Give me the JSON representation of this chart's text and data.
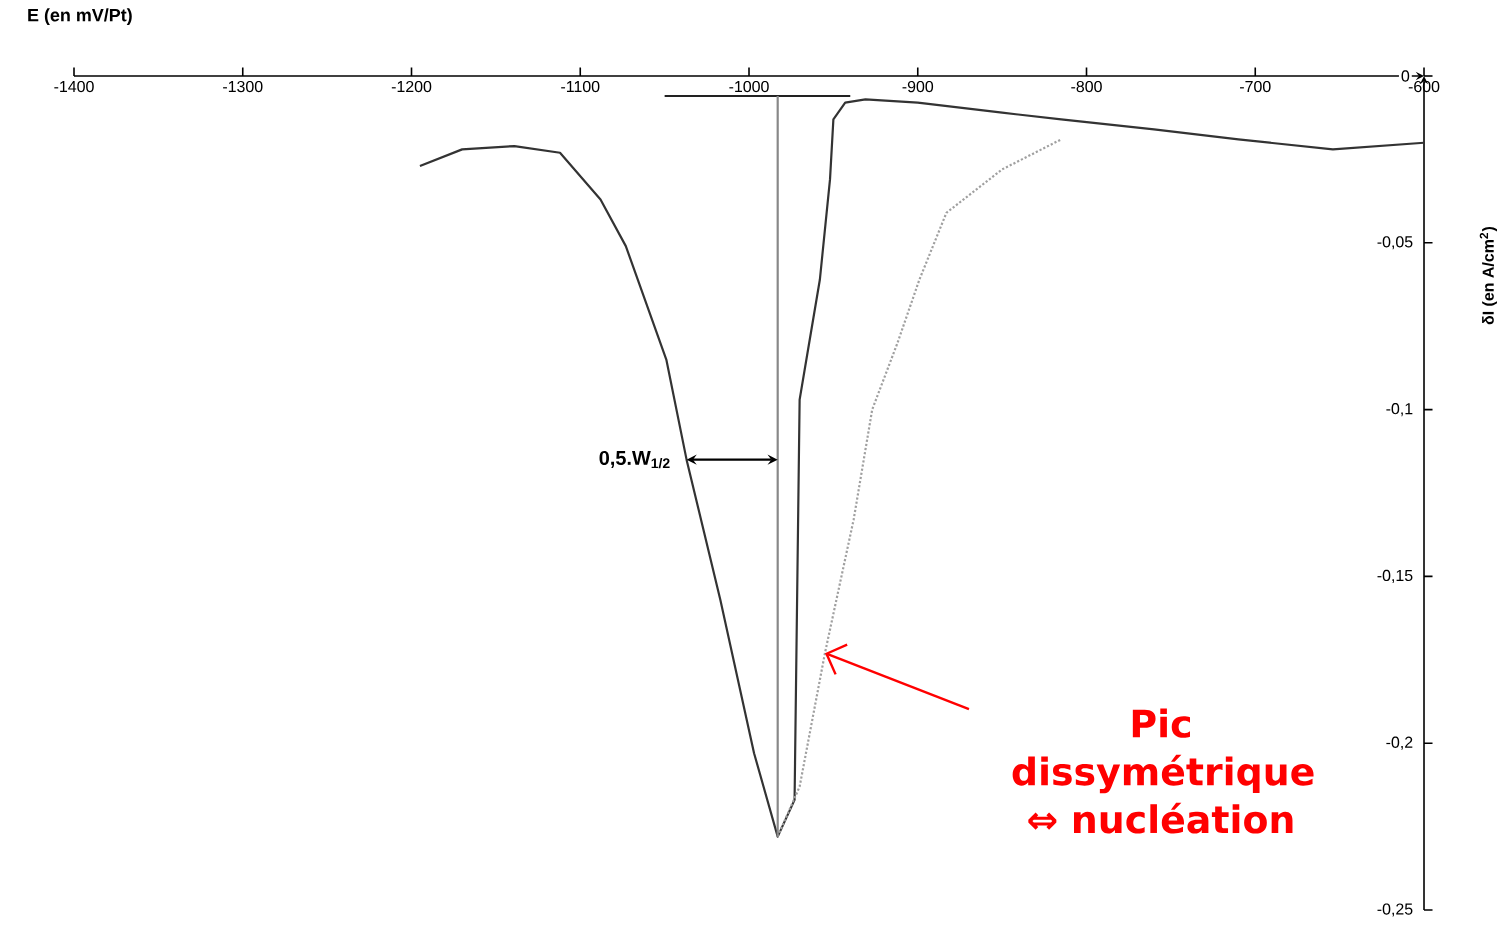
{
  "chart_data": {
    "type": "line",
    "xlabel": "E (en mV/Pt)",
    "ylabel": "δI (en A/cm$^{2}$)",
    "xlim": [
      -1400,
      -600
    ],
    "ylim": [
      -0.25,
      0
    ],
    "xticks": [
      -1400,
      -1300,
      -1200,
      -1100,
      -1000,
      -900,
      -800,
      -700,
      -600
    ],
    "yticks": [
      {
        "value": -0.25,
        "label": "-0,25"
      },
      {
        "value": -0.2,
        "label": "-0,2"
      },
      {
        "value": -0.15,
        "label": "-0,15"
      },
      {
        "value": -0.1,
        "label": "-0,1"
      },
      {
        "value": -0.05,
        "label": "-0,05"
      },
      0
    ],
    "grid": false,
    "marker": "none",
    "series": [
      {
        "color": "#333333",
        "line_style": "solid",
        "x": [
          -1195,
          -1170,
          -1139,
          -1112,
          -1088,
          -1073,
          -1049,
          -1037,
          -1017,
          -997,
          -983,
          -973,
          -970,
          -966,
          -958,
          -952,
          -950,
          -943,
          -931,
          -900,
          -850,
          -815,
          -760,
          -710,
          -654,
          -600
        ],
        "values": [
          -0.027,
          -0.022,
          -0.021,
          -0.023,
          -0.037,
          -0.051,
          -0.085,
          -0.115,
          -0.157,
          -0.203,
          -0.228,
          -0.217,
          -0.097,
          -0.085,
          -0.061,
          -0.031,
          -0.013,
          -0.008,
          -0.007,
          -0.008,
          -0.011,
          -0.013,
          -0.016,
          -0.019,
          -0.022,
          -0.02
        ]
      },
      {
        "color": "#a0a0a0",
        "line_style": "dotted",
        "x": [
          -983,
          -970,
          -955,
          -938,
          -927,
          -912,
          -899,
          -883,
          -850,
          -815
        ],
        "values": [
          -0.228,
          -0.213,
          -0.173,
          -0.133,
          -0.1,
          -0.08,
          -0.061,
          -0.041,
          -0.028,
          -0.019
        ]
      },
      {
        "color": "#222222",
        "line_style": "solid",
        "x": [
          -1050,
          -940
        ],
        "values": [
          -0.006,
          -0.006
        ]
      },
      {
        "color": "#888888",
        "line_style": "solid",
        "x": [
          -983,
          -983
        ],
        "values": [
          -0.006,
          -0.228
        ]
      }
    ],
    "annotations": [
      {
        "text": "0,5.W$_{1/2}$",
        "x": -1037,
        "y": -0.115
      },
      {
        "text": "Pic dissymétrique ⇔ nucléation",
        "x": -955,
        "y": -0.173
      }
    ]
  }
}
